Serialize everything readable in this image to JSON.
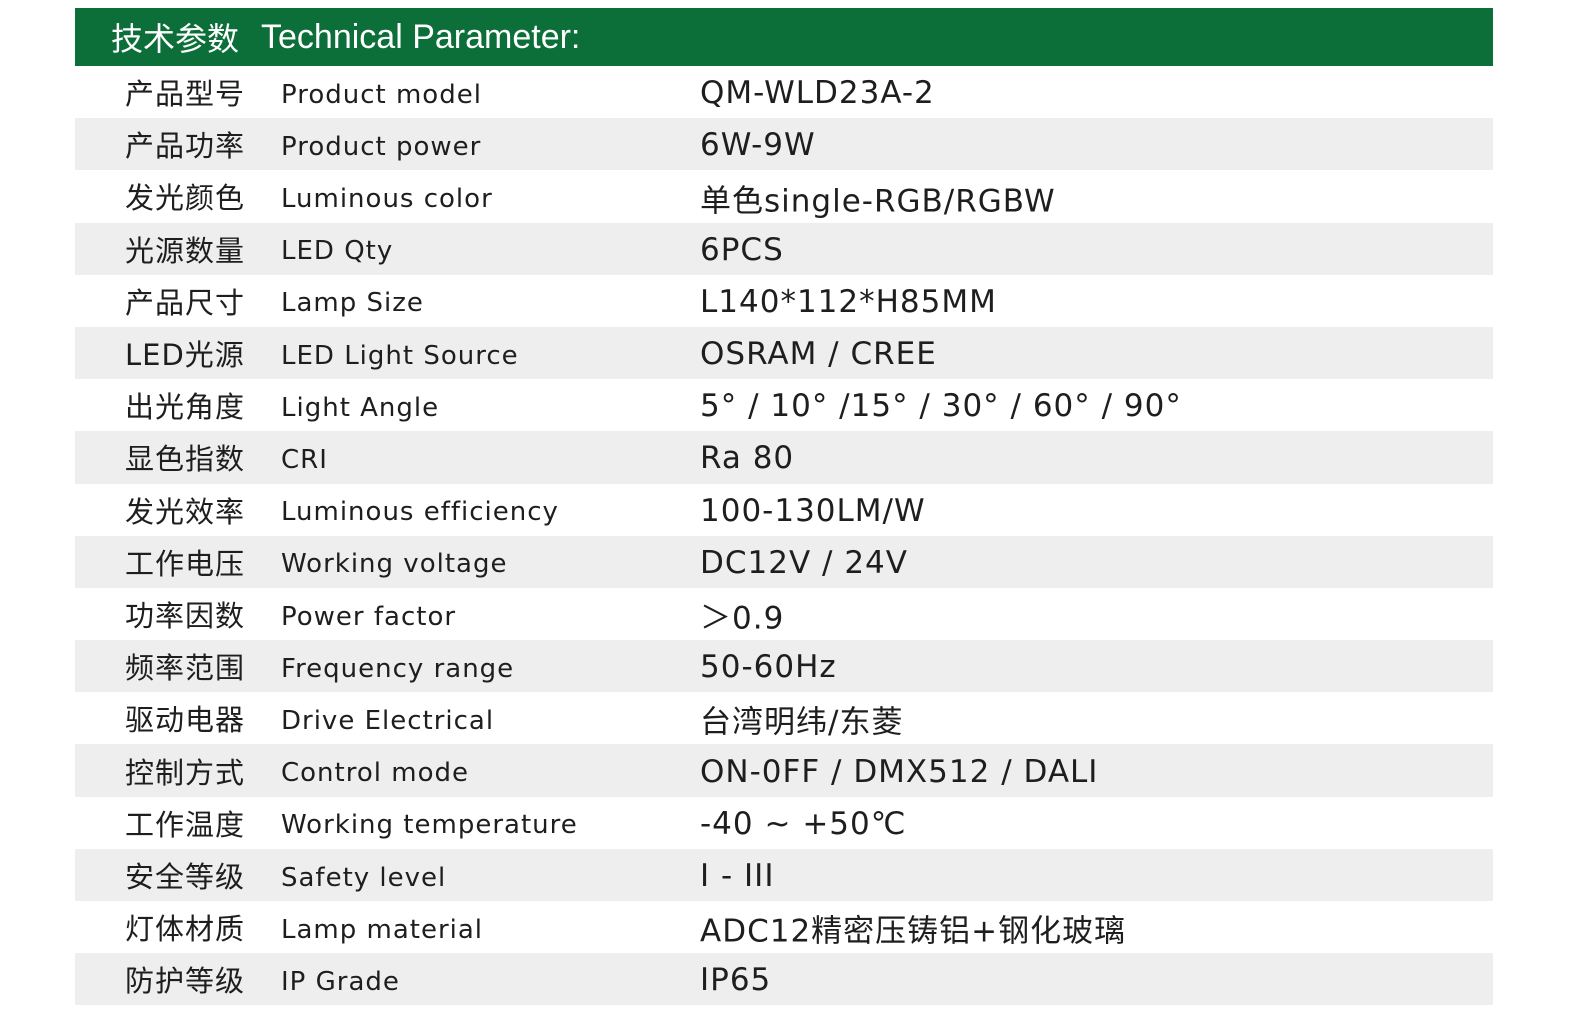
{
  "header": {
    "title_cn": "技术参数",
    "title_en": "Technical Parameter:",
    "color": "#0c6f3a"
  },
  "rows": [
    {
      "cn": "产品型号",
      "en": "Product model",
      "value": "QM-WLD23A-2"
    },
    {
      "cn": "产品功率",
      "en": "Product power",
      "value": "6W-9W"
    },
    {
      "cn": "发光颜色",
      "en": "Luminous color",
      "value": "单色single-RGB/RGBW"
    },
    {
      "cn": "光源数量",
      "en": "LED Qty",
      "value": "6PCS"
    },
    {
      "cn": "产品尺寸",
      "en": "Lamp Size",
      "value": "L140*112*H85MM"
    },
    {
      "cn": "LED光源",
      "en": "LED Light Source",
      "value": "OSRAM / CREE"
    },
    {
      "cn": "出光角度",
      "en": "Light Angle",
      "value": "5° / 10° /15° / 30° / 60° / 90°"
    },
    {
      "cn": "显色指数",
      "en": "CRI",
      "value": "Ra 80"
    },
    {
      "cn": "发光效率",
      "en": "Luminous efficiency",
      "value": "100-130LM/W"
    },
    {
      "cn": "工作电压",
      "en": "Working voltage",
      "value": "DC12V / 24V"
    },
    {
      "cn": "功率因数",
      "en": "Power factor",
      "value": "＞0.9"
    },
    {
      "cn": "频率范围",
      "en": "Frequency range",
      "value": "50-60Hz"
    },
    {
      "cn": "驱动电器",
      "en": "Drive Electrical",
      "value": "台湾明纬/东菱"
    },
    {
      "cn": "控制方式",
      "en": "Control mode",
      "value": "ON-0FF / DMX512 / DALI"
    },
    {
      "cn": "工作温度",
      "en": "Working temperature",
      "value": "-40 ~ +50℃"
    },
    {
      "cn": "安全等级",
      "en": "Safety level",
      "value": "I - III"
    },
    {
      "cn": "灯体材质",
      "en": "Lamp material",
      "value": "ADC12精密压铸铝+钢化玻璃"
    },
    {
      "cn": "防护等级",
      "en": "IP Grade",
      "value": "IP65"
    }
  ]
}
